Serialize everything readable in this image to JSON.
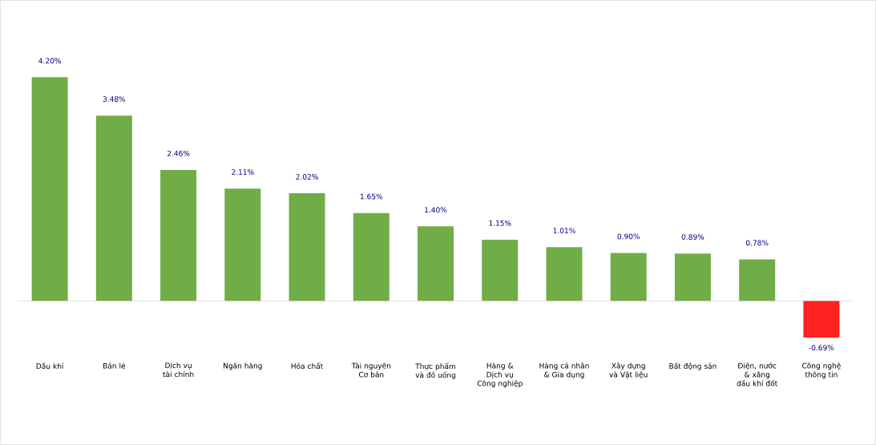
{
  "chart_data": {
    "type": "bar",
    "categories": [
      "Dầu khí",
      "Bán lẻ",
      "Dịch vụ tài chính",
      "Ngân hàng",
      "Hóa chất",
      "Tài nguyên Cơ bản",
      "Thực phẩm và đồ uống",
      "Hàng & Dịch vụ Công nghiệp",
      "Hàng cá nhân & Gia dụng",
      "Xây dựng và Vật liệu",
      "Bất động sản",
      "Điện, nước & xăng dầu khí đốt",
      "Công nghệ thông tin"
    ],
    "values": [
      4.2,
      3.48,
      2.46,
      2.11,
      2.02,
      1.65,
      1.4,
      1.15,
      1.01,
      0.9,
      0.89,
      0.78,
      -0.69
    ],
    "value_labels": [
      "4.20%",
      "3.48%",
      "2.46%",
      "2.11%",
      "2.02%",
      "1.65%",
      "1.40%",
      "1.15%",
      "1.01%",
      "0.90%",
      "0.89%",
      "0.78%",
      "-0.69%"
    ],
    "colors": [
      "#70ad47",
      "#70ad47",
      "#70ad47",
      "#70ad47",
      "#70ad47",
      "#70ad47",
      "#70ad47",
      "#70ad47",
      "#70ad47",
      "#70ad47",
      "#70ad47",
      "#70ad47",
      "#ff2020"
    ],
    "data_labels": false
  }
}
